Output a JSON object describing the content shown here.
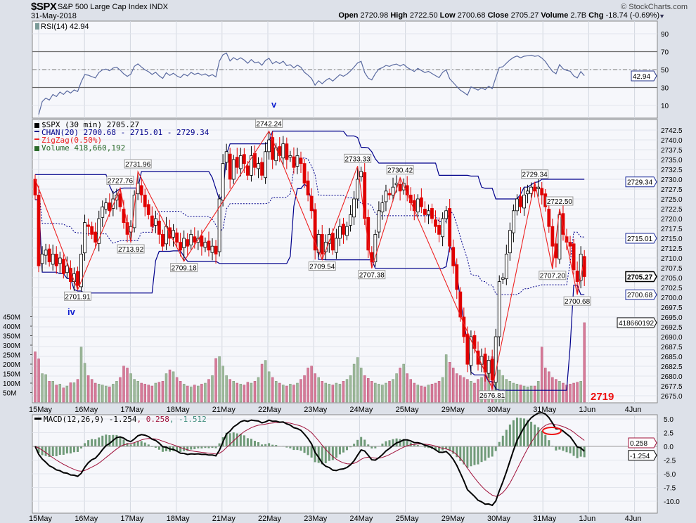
{
  "header": {
    "symbol": "$SPX",
    "name": "S&P 500 Large Cap Index",
    "exchange": "INDX",
    "date": "31-May-2018",
    "copyright": "© StockCharts.com",
    "open_label": "Open",
    "open": "2720.98",
    "high_label": "High",
    "high": "2722.50",
    "low_label": "Low",
    "low": "2700.68",
    "close_label": "Close",
    "close": "2705.27",
    "volume_label": "Volume",
    "volume": "2.7B",
    "chg_label": "Chg",
    "chg": "-18.74 (-0.69%)"
  },
  "colors": {
    "up": "#000000",
    "down": "#e00000",
    "channel": "#00008b",
    "zigzag": "#ee2222",
    "vol_up": "#9db89a",
    "vol_down": "#d67a98",
    "macd": "#000000",
    "signal": "#a0103a",
    "hist": "#6f9a78",
    "rsi": "#5a6aa0",
    "plot_bg": "#f6f7fb"
  },
  "chart_data": [
    {
      "panel": "rsi",
      "type": "line",
      "legend": "RSI(14) 42.94",
      "last_value": "42.94",
      "y_ticks": [
        "90",
        "70",
        "50",
        "30",
        "10"
      ],
      "levels": [
        70,
        50,
        30
      ],
      "annotation": "v"
    },
    {
      "panel": "price",
      "type": "candlestick",
      "legend": [
        "$SPX (30 min) 2705.27",
        "CHAN(20) 2700.68 - 2715.01 - 2729.34",
        "ZigZag(0.50%)",
        "Volume 418,660,192"
      ],
      "interval": "30 min",
      "x_ticks": [
        "15May",
        "16May",
        "17May",
        "18May",
        "21May",
        "22May",
        "23May",
        "24May",
        "25May",
        "29May",
        "30May",
        "31May",
        "1Jun",
        "4Jun"
      ],
      "y_ticks": [
        "2742.5",
        "2740.0",
        "2737.5",
        "2735.0",
        "2732.5",
        "2730.0",
        "2727.5",
        "2725.0",
        "2722.5",
        "2720.0",
        "2717.5",
        "2715.0",
        "2712.5",
        "2710.0",
        "2707.5",
        "2705.0",
        "2702.5",
        "2700.0",
        "2697.5",
        "2695.0",
        "2692.5",
        "2690.0",
        "2687.5",
        "2685.0",
        "2682.5",
        "2680.0",
        "2677.5",
        "2675.0"
      ],
      "ylim": [
        2675,
        2742.5
      ],
      "closes": [
        2726,
        2708,
        2711,
        2712,
        2709,
        2711,
        2708,
        2710,
        2706,
        2708,
        2704,
        2706,
        2703,
        2711,
        2719,
        2718,
        2716,
        2714,
        2720,
        2723,
        2724,
        2722,
        2725,
        2726,
        2723,
        2719,
        2716,
        2718,
        2726,
        2729,
        2726,
        2723,
        2721,
        2718,
        2720,
        2716,
        2713,
        2718,
        2715,
        2717,
        2714,
        2712,
        2715,
        2713,
        2716,
        2714,
        2715,
        2713,
        2714,
        2712,
        2713,
        2711,
        2725,
        2734,
        2737,
        2730,
        2735,
        2733,
        2736,
        2734,
        2731,
        2736,
        2733,
        2734,
        2731,
        2737,
        2740,
        2735,
        2738,
        2736,
        2739,
        2735,
        2736,
        2733,
        2736,
        2734,
        2729,
        2726,
        2722,
        2712,
        2716,
        2711,
        2714,
        2716,
        2712,
        2715,
        2718,
        2716,
        2718,
        2721,
        2725,
        2730,
        2732,
        2720,
        2712,
        2709,
        2716,
        2722,
        2724,
        2727,
        2726,
        2728,
        2729,
        2727,
        2729,
        2726,
        2724,
        2722,
        2725,
        2723,
        2721,
        2722,
        2720,
        2718,
        2716,
        2720,
        2722,
        2713,
        2708,
        2702,
        2695,
        2690,
        2683,
        2690,
        2687,
        2683,
        2685,
        2681,
        2684,
        2679,
        2690,
        2704,
        2705,
        2711,
        2717,
        2722,
        2725,
        2723,
        2726,
        2727,
        2728,
        2727,
        2728,
        2726,
        2723,
        2718,
        2713,
        2710,
        2721,
        2716,
        2714,
        2713,
        2707,
        2704,
        2711,
        2705.27
      ],
      "first_open": 2730,
      "volume_m": [
        265,
        228,
        150,
        145,
        110,
        110,
        90,
        95,
        75,
        85,
        102,
        102,
        120,
        290,
        205,
        140,
        120,
        100,
        95,
        90,
        85,
        80,
        95,
        110,
        130,
        190,
        180,
        150,
        120,
        110,
        100,
        95,
        90,
        85,
        100,
        105,
        110,
        150,
        170,
        160,
        130,
        110,
        95,
        85,
        80,
        90,
        85,
        95,
        100,
        120,
        140,
        230,
        240,
        190,
        140,
        120,
        110,
        100,
        95,
        90,
        105,
        100,
        110,
        130,
        200,
        220,
        160,
        130,
        110,
        100,
        90,
        85,
        95,
        90,
        100,
        120,
        140,
        180,
        190,
        150,
        130,
        110,
        100,
        95,
        90,
        100,
        95,
        110,
        120,
        140,
        200,
        235,
        180,
        140,
        125,
        110,
        100,
        95,
        90,
        100,
        110,
        120,
        150,
        180,
        200,
        150,
        120,
        100,
        90,
        85,
        80,
        90,
        95,
        100,
        110,
        130,
        250,
        210,
        180,
        150,
        140,
        130,
        120,
        110,
        100,
        120,
        130,
        140,
        160,
        240,
        230,
        170,
        140,
        120,
        110,
        100,
        95,
        90,
        85,
        80,
        85,
        85,
        110,
        290,
        180,
        160,
        130,
        120,
        110,
        100,
        90,
        95,
        100,
        105,
        110,
        418.66
      ],
      "volume_ticks": [
        "450M",
        "400M",
        "350M",
        "300M",
        "250M",
        "200M",
        "150M",
        "100M",
        "50M"
      ],
      "zigzag": [
        {
          "bar": 0,
          "price": 2730,
          "label": ""
        },
        {
          "bar": 12,
          "price": 2701.91,
          "label": "2701.91",
          "type": "low"
        },
        {
          "bar": 24,
          "price": 2727.76,
          "label": "2727.76",
          "type": "high"
        },
        {
          "bar": 27,
          "price": 2713.92,
          "label": "2713.92",
          "type": "low"
        },
        {
          "bar": 29,
          "price": 2731.96,
          "label": "2731.96",
          "type": "high"
        },
        {
          "bar": 42,
          "price": 2709.18,
          "label": "2709.18",
          "type": "low"
        },
        {
          "bar": 66,
          "price": 2742.24,
          "label": "2742.24",
          "type": "high"
        },
        {
          "bar": 81,
          "price": 2709.54,
          "label": "2709.54",
          "type": "low"
        },
        {
          "bar": 91,
          "price": 2733.33,
          "label": "2733.33",
          "type": "high"
        },
        {
          "bar": 95,
          "price": 2707.38,
          "label": "2707.38",
          "type": "low"
        },
        {
          "bar": 103,
          "price": 2730.42,
          "label": "2730.42",
          "type": "high"
        },
        {
          "bar": 129,
          "price": 2676.81,
          "label": "2676.81",
          "type": "low"
        },
        {
          "bar": 141,
          "price": 2729.34,
          "label": "2729.34",
          "type": "high"
        },
        {
          "bar": 146,
          "price": 2707.2,
          "label": "2707.20",
          "type": "low"
        },
        {
          "bar": 148,
          "price": 2722.5,
          "label": "2722.50",
          "type": "high"
        },
        {
          "bar": 153,
          "price": 2700.68,
          "label": "2700.68",
          "type": "low"
        },
        {
          "bar": 155,
          "price": 2710,
          "label": ""
        }
      ],
      "axis_markers": [
        {
          "value": "2729.34",
          "kind": "channel"
        },
        {
          "value": "2715.01",
          "kind": "channel"
        },
        {
          "value": "2705.27",
          "kind": "close"
        },
        {
          "value": "2700.68",
          "kind": "channel"
        },
        {
          "value": "418660192",
          "kind": "volume"
        }
      ],
      "annotations": [
        "iv",
        "2719"
      ]
    },
    {
      "panel": "macd",
      "type": "line",
      "legend_name": "MACD(12,26,9)",
      "macd": "-1.254",
      "signal": "0.258",
      "histogram": "-1.512",
      "y_ticks": [
        "5.0",
        "2.5",
        "0.0",
        "-2.5",
        "-5.0",
        "-7.5",
        "-10.0"
      ],
      "axis_markers": [
        "0.258",
        "-1.254"
      ],
      "x_ticks": [
        "15May",
        "16May",
        "17May",
        "18May",
        "21May",
        "22May",
        "23May",
        "24May",
        "25May",
        "29May",
        "30May",
        "31May",
        "1Jun",
        "4Jun"
      ]
    }
  ]
}
